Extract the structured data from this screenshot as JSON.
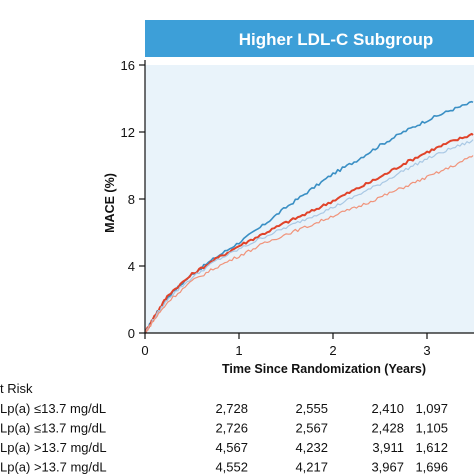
{
  "panel": {
    "title": "Higher LDL-C Subgroup",
    "banner_color": "#3d9fd8",
    "plot_bg_color": "#e9f3fa"
  },
  "chart_data": {
    "type": "line",
    "title": "Higher LDL-C Subgroup",
    "xlabel": "Time Since Randomization (Years)",
    "ylabel": "MACE (%)",
    "xlim": [
      0,
      3.5
    ],
    "ylim": [
      0,
      16
    ],
    "x_ticks": [
      0,
      1,
      2,
      3
    ],
    "y_ticks": [
      0,
      4,
      8,
      12,
      16
    ],
    "grid": false,
    "series": [
      {
        "color": "#3a8fc4",
        "width": 1.6,
        "points": [
          [
            0,
            0
          ],
          [
            0.1,
            1.0
          ],
          [
            0.25,
            2.2
          ],
          [
            0.5,
            3.5
          ],
          [
            0.75,
            4.5
          ],
          [
            1,
            5.4
          ],
          [
            1.25,
            6.4
          ],
          [
            1.5,
            7.5
          ],
          [
            1.75,
            8.5
          ],
          [
            2,
            9.5
          ],
          [
            2.25,
            10.3
          ],
          [
            2.5,
            11.2
          ],
          [
            2.75,
            12.0
          ],
          [
            3,
            12.7
          ],
          [
            3.25,
            13.3
          ],
          [
            3.5,
            13.8
          ]
        ]
      },
      {
        "color": "#e0432a",
        "width": 2.0,
        "points": [
          [
            0,
            0
          ],
          [
            0.1,
            1.0
          ],
          [
            0.25,
            2.3
          ],
          [
            0.5,
            3.5
          ],
          [
            0.75,
            4.4
          ],
          [
            1,
            5.2
          ],
          [
            1.25,
            5.9
          ],
          [
            1.5,
            6.6
          ],
          [
            1.75,
            7.2
          ],
          [
            2,
            7.9
          ],
          [
            2.25,
            8.6
          ],
          [
            2.5,
            9.3
          ],
          [
            2.75,
            10.1
          ],
          [
            3,
            10.8
          ],
          [
            3.25,
            11.4
          ],
          [
            3.5,
            11.9
          ]
        ]
      },
      {
        "color": "#a9c8e4",
        "width": 1.2,
        "points": [
          [
            0,
            0
          ],
          [
            0.1,
            0.9
          ],
          [
            0.25,
            2.1
          ],
          [
            0.5,
            3.3
          ],
          [
            0.75,
            4.3
          ],
          [
            1,
            5.0
          ],
          [
            1.25,
            5.7
          ],
          [
            1.5,
            6.3
          ],
          [
            1.75,
            6.9
          ],
          [
            2,
            7.5
          ],
          [
            2.25,
            8.2
          ],
          [
            2.5,
            8.9
          ],
          [
            2.75,
            9.7
          ],
          [
            3,
            10.4
          ],
          [
            3.25,
            11.0
          ],
          [
            3.5,
            11.5
          ]
        ]
      },
      {
        "color": "#f0937a",
        "width": 1.2,
        "points": [
          [
            0,
            0
          ],
          [
            0.1,
            0.8
          ],
          [
            0.25,
            1.9
          ],
          [
            0.5,
            3.1
          ],
          [
            0.75,
            3.9
          ],
          [
            1,
            4.6
          ],
          [
            1.25,
            5.3
          ],
          [
            1.5,
            5.9
          ],
          [
            1.75,
            6.4
          ],
          [
            2,
            7.0
          ],
          [
            2.25,
            7.5
          ],
          [
            2.5,
            8.1
          ],
          [
            2.75,
            8.7
          ],
          [
            3,
            9.3
          ],
          [
            3.25,
            9.9
          ],
          [
            3.5,
            10.6
          ]
        ]
      }
    ],
    "at_risk": {
      "title": "t Risk",
      "rows": [
        {
          "label": "Lp(a) ≤13.7 mg/dL",
          "values": [
            "2,728",
            "2,555",
            "2,410",
            "1,097"
          ]
        },
        {
          "label": "Lp(a) ≤13.7 mg/dL",
          "values": [
            "2,726",
            "2,567",
            "2,428",
            "1,105"
          ]
        },
        {
          "label": "Lp(a) >13.7 mg/dL",
          "values": [
            "4,567",
            "4,232",
            "3,911",
            "1,612"
          ]
        },
        {
          "label": "Lp(a) >13.7 mg/dL",
          "values": [
            "4,552",
            "4,217",
            "3,967",
            "1,696"
          ]
        }
      ]
    }
  }
}
